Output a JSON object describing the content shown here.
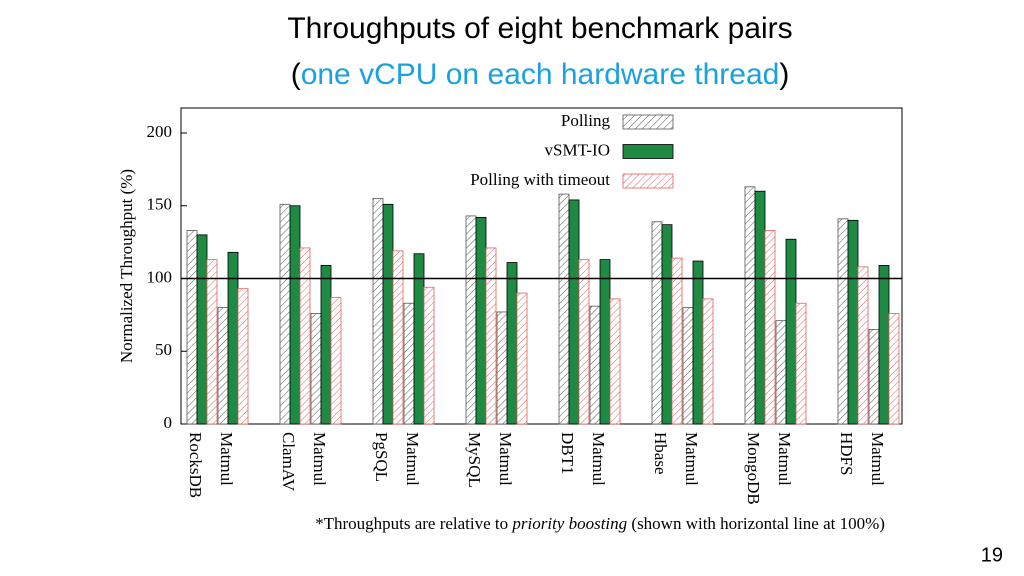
{
  "chart_data": {
    "type": "bar",
    "title": "Throughputs of eight benchmark pairs",
    "subtitle_parts": [
      "(",
      "one vCPU on each hardware thread",
      ")"
    ],
    "ylabel": "Normalized Throughput (%)",
    "categories": [
      "RocksDB",
      "Matmul",
      "ClamAV",
      "Matmul",
      "PgSQL",
      "Matmul",
      "MySQL",
      "Matmul",
      "DBT1",
      "Matmul",
      "Hbase",
      "Matmul",
      "MongoDB",
      "Matmul",
      "HDFS",
      "Matmul"
    ],
    "series": [
      {
        "name": "Polling",
        "color": "#555555",
        "pattern": "hatch",
        "values": [
          133,
          80,
          151,
          76,
          155,
          83,
          143,
          77,
          158,
          81,
          139,
          80,
          163,
          71,
          141,
          65
        ]
      },
      {
        "name": "vSMT-IO",
        "color": "#1e8a43",
        "pattern": "solid",
        "values": [
          130,
          118,
          150,
          109,
          151,
          117,
          142,
          111,
          154,
          113,
          137,
          112,
          160,
          127,
          140,
          109
        ]
      },
      {
        "name": "Polling with timeout",
        "color": "#e06060",
        "pattern": "hatch",
        "values": [
          113,
          93,
          121,
          87,
          119,
          94,
          121,
          90,
          113,
          86,
          114,
          86,
          133,
          83,
          108,
          76
        ]
      }
    ],
    "ylim": [
      0,
      200
    ],
    "yticks": [
      0,
      50,
      100,
      150,
      200
    ],
    "reference_line": 100,
    "legend": "upper right",
    "grid": false,
    "footnote_parts": [
      "*Throughputs are relative to ",
      "priority boosting",
      " (shown with horizontal line at 100%)"
    ],
    "page_number": "19"
  }
}
